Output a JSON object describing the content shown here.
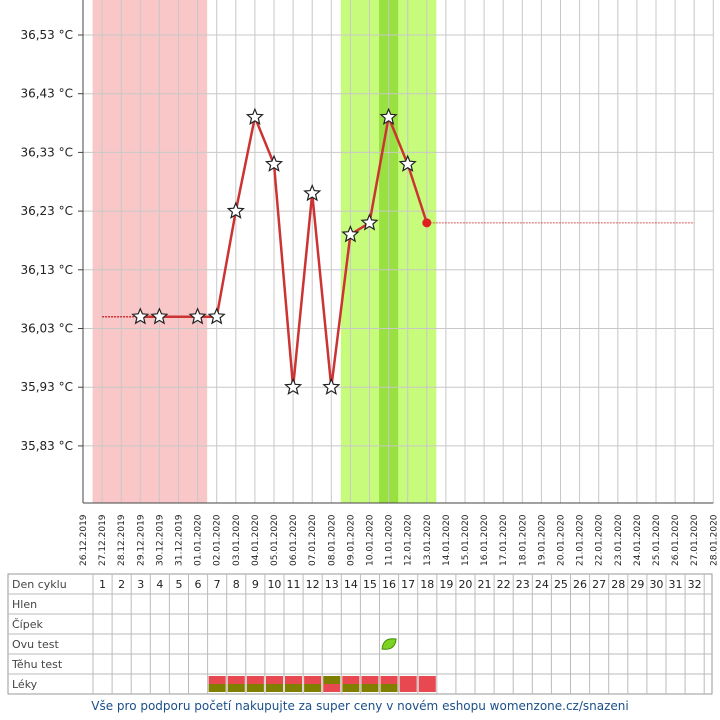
{
  "chart_data": {
    "type": "line",
    "title": "",
    "xlabel": "",
    "ylabel": "",
    "x": [
      "26.12.2019",
      "27.12.2019",
      "28.12.2019",
      "29.12.2019",
      "30.12.2019",
      "31.12.2019",
      "01.01.2020",
      "02.01.2020",
      "03.01.2020",
      "04.01.2020",
      "05.01.2020",
      "06.01.2020",
      "07.01.2020",
      "08.01.2020",
      "09.01.2020",
      "10.01.2020",
      "11.01.2020",
      "12.01.2020",
      "13.01.2020",
      "14.01.2020",
      "15.01.2020",
      "16.01.2020",
      "17.01.2020",
      "18.01.2020",
      "19.01.2020",
      "20.01.2020",
      "21.01.2020",
      "22.01.2020",
      "23.01.2020",
      "24.01.2020",
      "25.01.2020",
      "26.01.2020",
      "27.01.2020",
      "28.01.2020"
    ],
    "ylim": [
      35.73,
      36.59
    ],
    "y_ticks": [
      {
        "value": 36.53,
        "label": "36,53 °C"
      },
      {
        "value": 36.43,
        "label": "36,43 °C"
      },
      {
        "value": 36.33,
        "label": "36,33 °C"
      },
      {
        "value": 36.23,
        "label": "36,23 °C"
      },
      {
        "value": 36.13,
        "label": "36,13 °C"
      },
      {
        "value": 36.03,
        "label": "36,03 °C"
      },
      {
        "value": 35.93,
        "label": "35,93 °C"
      },
      {
        "value": 35.83,
        "label": "35,83 °C"
      }
    ],
    "grid": true,
    "series": [
      {
        "color": "#cc3333",
        "values": [
          null,
          36.05,
          36.05,
          36.05,
          36.05,
          36.05,
          36.05,
          36.05,
          36.23,
          36.39,
          36.31,
          35.93,
          36.26,
          35.93,
          36.19,
          36.21,
          36.39,
          36.31,
          36.21,
          36.21,
          36.21,
          36.21,
          36.21,
          36.21,
          36.21,
          36.21,
          36.21,
          36.21,
          36.21,
          36.21,
          36.21,
          36.21,
          36.21,
          null
        ],
        "markers": [
          null,
          null,
          null,
          "star",
          "star",
          null,
          "star",
          "star",
          "star",
          "star",
          "star",
          "star",
          "star",
          "star",
          "star",
          "star",
          "star",
          "star",
          "dot",
          null,
          null,
          null,
          null,
          null,
          null,
          null,
          null,
          null,
          null,
          null,
          null,
          null,
          null,
          null
        ],
        "estimated_from_index": 19,
        "extrapolated_before_index": 3
      }
    ],
    "bands": [
      {
        "from_day": 1,
        "to_day": 6,
        "color": "#f9c7c7"
      },
      {
        "from_day": 14,
        "to_day": 18,
        "color": "#c6fb7b"
      },
      {
        "from_day": 16,
        "to_day": 16,
        "color": "#99e041"
      }
    ],
    "day_axis_start": "27.12.2019",
    "cycle_days": [
      "1",
      "2",
      "3",
      "4",
      "5",
      "6",
      "7",
      "8",
      "9",
      "10",
      "11",
      "12",
      "13",
      "14",
      "15",
      "16",
      "17",
      "18",
      "19",
      "20",
      "21",
      "22",
      "23",
      "24",
      "25",
      "26",
      "27",
      "28",
      "29",
      "30",
      "31",
      "32"
    ],
    "rows": [
      "Den cyklu",
      "Hlen",
      "Čípek",
      "Ovu test",
      "Těhu test",
      "Léky"
    ],
    "ovu_test_positive_day": 16,
    "leky": [
      {
        "day": 7,
        "halves": [
          "#e8484f",
          "#808000"
        ]
      },
      {
        "day": 8,
        "halves": [
          "#e8484f",
          "#808000"
        ]
      },
      {
        "day": 9,
        "halves": [
          "#e8484f",
          "#808000"
        ]
      },
      {
        "day": 10,
        "halves": [
          "#e8484f",
          "#808000"
        ]
      },
      {
        "day": 11,
        "halves": [
          "#e8484f",
          "#808000"
        ]
      },
      {
        "day": 12,
        "halves": [
          "#e8484f",
          "#808000"
        ]
      },
      {
        "day": 13,
        "halves": [
          "#808000",
          "#e8484f"
        ]
      },
      {
        "day": 14,
        "halves": [
          "#e8484f",
          "#808000"
        ]
      },
      {
        "day": 15,
        "halves": [
          "#e8484f",
          "#808000"
        ]
      },
      {
        "day": 16,
        "halves": [
          "#e8484f",
          "#808000"
        ]
      },
      {
        "day": 17,
        "halves": [
          "#e8484f",
          "#e8484f"
        ]
      },
      {
        "day": 18,
        "halves": [
          "#e8484f",
          "#e8484f"
        ]
      }
    ]
  },
  "footer": {
    "text": "Vše pro podporu početí nakupujte za super ceny v novém eshopu womenzone.cz/snazeni"
  }
}
